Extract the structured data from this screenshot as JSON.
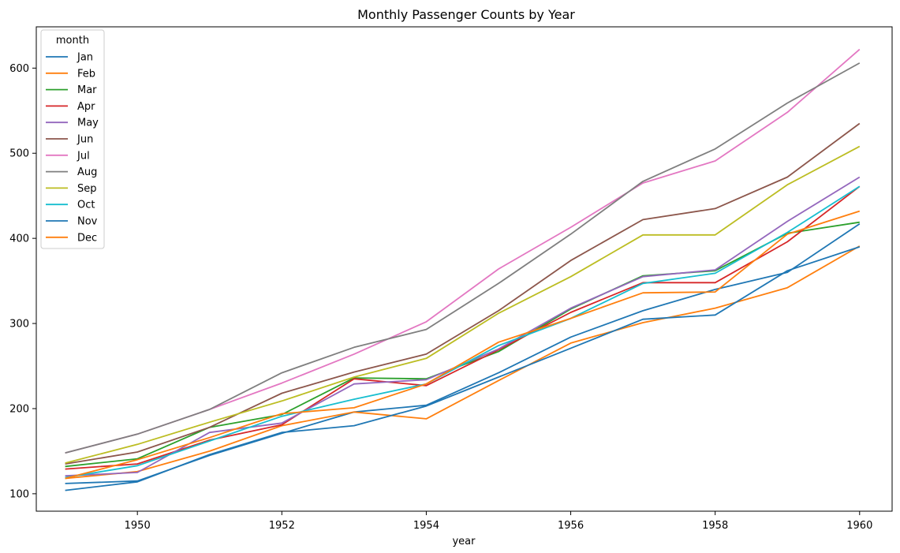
{
  "chart_data": {
    "type": "line",
    "title": "Monthly Passenger Counts by Year",
    "xlabel": "year",
    "ylabel": "",
    "x": [
      1949,
      1950,
      1951,
      1952,
      1953,
      1954,
      1955,
      1956,
      1957,
      1958,
      1959,
      1960
    ],
    "xlim": [
      1948.6,
      1960.45
    ],
    "ylim": [
      79.5,
      648.5
    ],
    "xticks": [
      1950,
      1952,
      1954,
      1956,
      1958,
      1960
    ],
    "yticks": [
      100,
      200,
      300,
      400,
      500,
      600
    ],
    "grid": false,
    "legend": {
      "title": "month",
      "placement": "top-left"
    },
    "series": [
      {
        "name": "Jan",
        "color": "#1f77b4",
        "values": [
          112,
          115,
          145,
          171,
          196,
          204,
          242,
          284,
          315,
          340,
          360,
          417
        ]
      },
      {
        "name": "Feb",
        "color": "#ff7f0e",
        "values": [
          118,
          126,
          150,
          180,
          196,
          188,
          233,
          277,
          301,
          318,
          342,
          391
        ]
      },
      {
        "name": "Mar",
        "color": "#2ca02c",
        "values": [
          132,
          141,
          178,
          193,
          236,
          235,
          267,
          317,
          356,
          362,
          406,
          419
        ]
      },
      {
        "name": "Apr",
        "color": "#d62728",
        "values": [
          129,
          135,
          163,
          181,
          235,
          227,
          269,
          313,
          348,
          348,
          396,
          461
        ]
      },
      {
        "name": "May",
        "color": "#9467bd",
        "values": [
          121,
          125,
          172,
          183,
          229,
          234,
          270,
          318,
          355,
          363,
          420,
          472
        ]
      },
      {
        "name": "Jun",
        "color": "#8c564b",
        "values": [
          135,
          149,
          178,
          218,
          243,
          264,
          315,
          374,
          422,
          435,
          472,
          535
        ]
      },
      {
        "name": "Jul",
        "color": "#e377c2",
        "values": [
          148,
          170,
          199,
          230,
          264,
          302,
          364,
          413,
          465,
          491,
          548,
          622
        ]
      },
      {
        "name": "Aug",
        "color": "#7f7f7f",
        "values": [
          148,
          170,
          199,
          242,
          272,
          293,
          347,
          405,
          467,
          505,
          559,
          606
        ]
      },
      {
        "name": "Sep",
        "color": "#bcbd22",
        "values": [
          136,
          158,
          184,
          209,
          237,
          259,
          312,
          355,
          404,
          404,
          463,
          508
        ]
      },
      {
        "name": "Oct",
        "color": "#17becf",
        "values": [
          119,
          133,
          162,
          191,
          211,
          229,
          274,
          306,
          347,
          359,
          407,
          461
        ]
      },
      {
        "name": "Nov",
        "color": "#1f77b4",
        "values": [
          104,
          114,
          146,
          172,
          180,
          203,
          237,
          271,
          305,
          310,
          362,
          390
        ]
      },
      {
        "name": "Dec",
        "color": "#ff7f0e",
        "values": [
          118,
          140,
          166,
          194,
          201,
          229,
          278,
          306,
          336,
          337,
          405,
          432
        ]
      }
    ]
  }
}
